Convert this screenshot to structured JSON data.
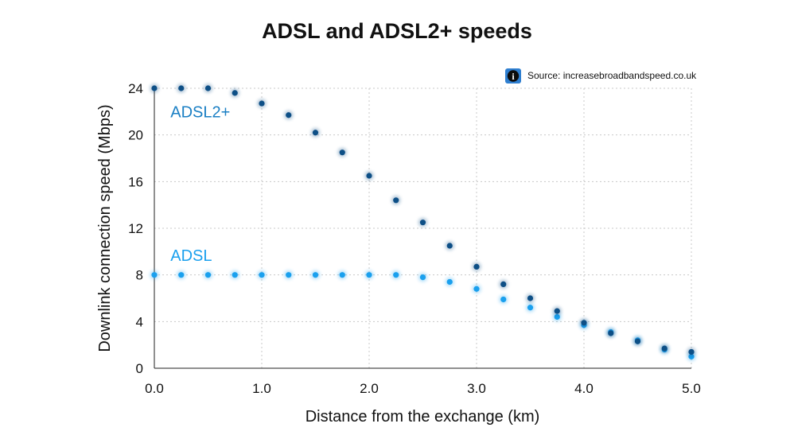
{
  "chart_data": {
    "type": "scatter",
    "title": "ADSL and ADSL2+ speeds",
    "xlabel": "Distance from the exchange (km)",
    "ylabel": "Downlink connection speed (Mbps)",
    "xlim": [
      0,
      5
    ],
    "ylim": [
      0,
      24
    ],
    "x_ticks": [
      0,
      1,
      2,
      3,
      4,
      5
    ],
    "x_tick_labels": [
      "0.0",
      "1.0",
      "2.0",
      "3.0",
      "4.0",
      "5.0"
    ],
    "y_ticks": [
      0,
      4,
      8,
      12,
      16,
      20,
      24
    ],
    "y_tick_labels": [
      "0",
      "4",
      "8",
      "12",
      "16",
      "20",
      "24"
    ],
    "grid": true,
    "source": "Source: increasebroadbandspeed.co.uk",
    "source_icon": "info-icon",
    "series": [
      {
        "name": "ADSL2+",
        "color": "#0d4f86",
        "label_color": "#1a7fc4",
        "x": [
          0,
          0.25,
          0.5,
          0.75,
          1.0,
          1.25,
          1.5,
          1.75,
          2.0,
          2.25,
          2.5,
          2.75,
          3.0,
          3.25,
          3.5,
          3.75,
          4.0,
          4.25,
          4.5,
          4.75,
          5.0
        ],
        "values": [
          24,
          24,
          24,
          23.6,
          22.7,
          21.7,
          20.2,
          18.5,
          16.5,
          14.4,
          12.5,
          10.5,
          8.7,
          7.2,
          6.0,
          4.9,
          3.9,
          3.0,
          2.3,
          1.7,
          1.4
        ]
      },
      {
        "name": "ADSL",
        "color": "#1aa0ee",
        "label_color": "#1aa0ee",
        "x": [
          0,
          0.25,
          0.5,
          0.75,
          1.0,
          1.25,
          1.5,
          1.75,
          2.0,
          2.25,
          2.5,
          2.75,
          3.0,
          3.25,
          3.5,
          3.75,
          4.0,
          4.25,
          4.5,
          4.75,
          5.0
        ],
        "values": [
          8,
          8,
          8,
          8,
          8,
          8,
          8,
          8,
          8,
          8,
          7.8,
          7.4,
          6.8,
          5.9,
          5.2,
          4.4,
          3.7,
          3.1,
          2.4,
          1.6,
          1.0
        ]
      }
    ],
    "series_label_anchor": [
      {
        "name": "ADSL2+",
        "x": 0.15,
        "y": 21.5
      },
      {
        "name": "ADSL",
        "x": 0.15,
        "y": 9.2
      }
    ]
  }
}
